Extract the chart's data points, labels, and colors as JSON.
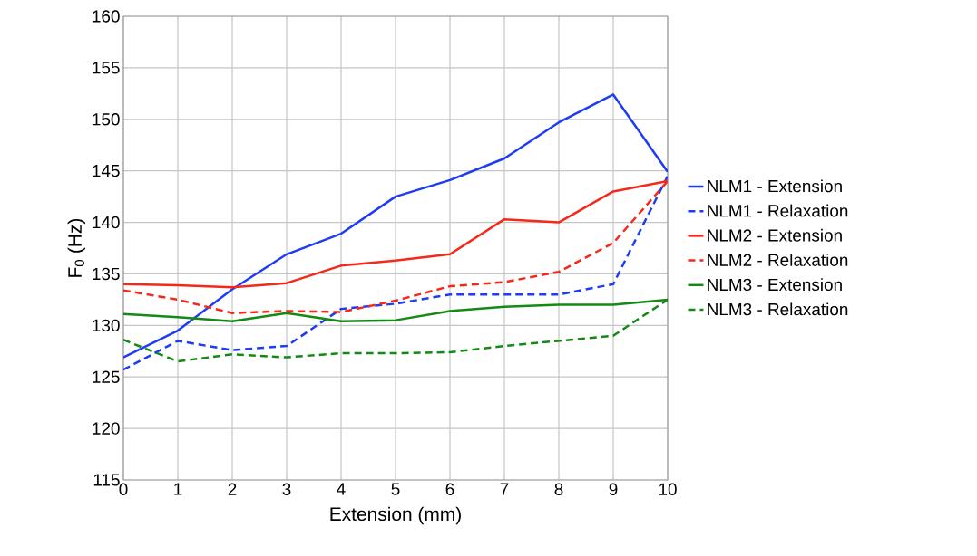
{
  "chart_data": {
    "type": "line",
    "xlabel": "Extension (mm)",
    "ylabel": "F$_{0}$ (Hz)",
    "x": [
      0,
      1,
      2,
      3,
      4,
      5,
      6,
      7,
      8,
      9,
      10
    ],
    "series": [
      {
        "name": "NLM1 - Extension",
        "color": "#1f3cf5",
        "line_style": "solid",
        "values": [
          126.9,
          129.5,
          133.5,
          136.9,
          138.9,
          142.5,
          144.1,
          146.2,
          149.7,
          152.4,
          144.9
        ]
      },
      {
        "name": "NLM1 - Relaxation",
        "color": "#1f3cf5",
        "line_style": "dashed",
        "values": [
          125.7,
          128.5,
          127.6,
          128.0,
          131.6,
          132.1,
          133.0,
          133.0,
          133.0,
          134.0,
          144.5
        ]
      },
      {
        "name": "NLM2 - Extension",
        "color": "#f5291a",
        "line_style": "solid",
        "values": [
          134.0,
          133.9,
          133.7,
          134.1,
          135.8,
          136.3,
          136.9,
          140.3,
          140.0,
          143.0,
          144.0
        ]
      },
      {
        "name": "NLM2 - Relaxation",
        "color": "#f5291a",
        "line_style": "dashed",
        "values": [
          133.4,
          132.5,
          131.2,
          131.4,
          131.3,
          132.4,
          133.8,
          134.2,
          135.2,
          138.0,
          144.0
        ]
      },
      {
        "name": "NLM3 - Extension",
        "color": "#138a13",
        "line_style": "solid",
        "values": [
          131.1,
          130.8,
          130.4,
          131.2,
          130.4,
          130.5,
          131.4,
          131.8,
          132.0,
          132.0,
          132.5
        ]
      },
      {
        "name": "NLM3 - Relaxation",
        "color": "#138a13",
        "line_style": "dashed",
        "values": [
          128.6,
          126.5,
          127.2,
          126.9,
          127.3,
          127.3,
          127.4,
          128.0,
          128.5,
          129.0,
          132.5
        ]
      }
    ],
    "xlim": [
      0,
      10
    ],
    "xticks": [
      0,
      1,
      2,
      3,
      4,
      5,
      6,
      7,
      8,
      9,
      10
    ],
    "ylim": [
      115,
      160
    ],
    "yticks": [
      115,
      120,
      125,
      130,
      135,
      140,
      145,
      150,
      155,
      160
    ],
    "grid": true,
    "legend": "right"
  }
}
